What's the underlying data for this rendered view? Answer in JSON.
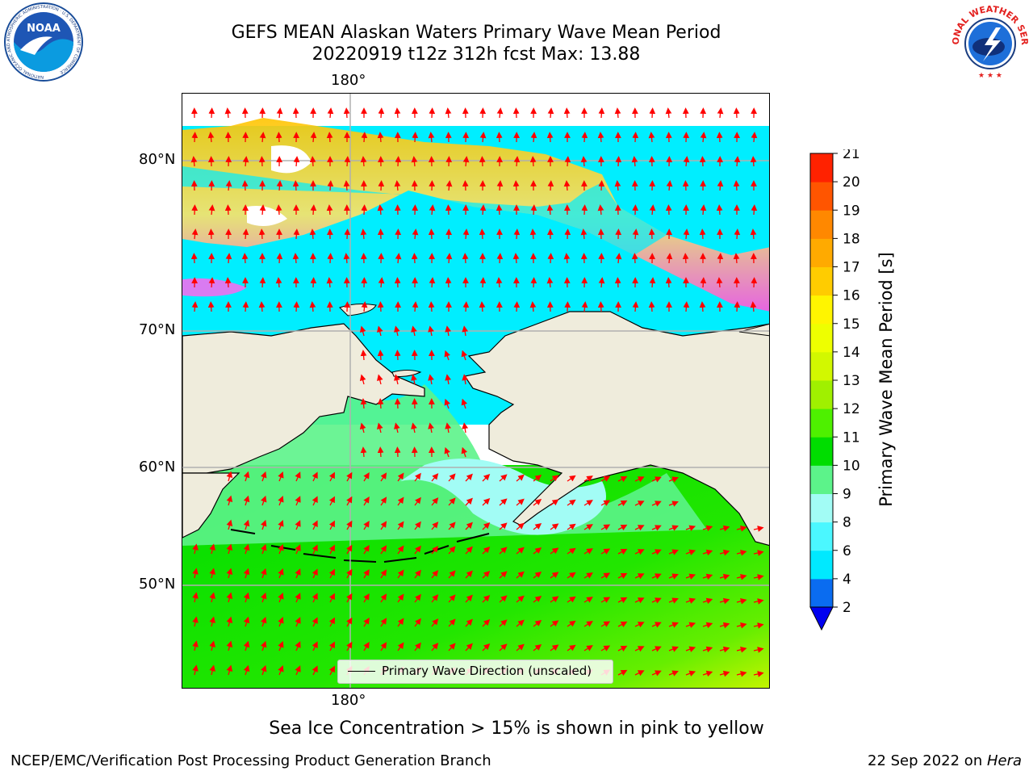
{
  "header": {
    "title_line1": "GEFS MEAN Alaskan Waters Primary Wave Mean Period",
    "title_line2": "20220919 t12z 312h fcst   Max: 13.88"
  },
  "logos": {
    "left": {
      "name": "NOAA",
      "ring_text": "NATIONAL OCEANIC AND ATMOSPHERIC ADMINISTRATION · U.S. DEPARTMENT OF COMMERCE"
    },
    "right": {
      "ring_text": "NATIONAL WEATHER SERVICE"
    }
  },
  "map": {
    "longitude_label_top": "180°",
    "longitude_label_bottom": "180°",
    "latitude_labels": [
      "80°N",
      "70°N",
      "60°N",
      "50°N"
    ],
    "legend_text": "Primary Wave Direction (unscaled)",
    "arrow_color": "#ff0000",
    "land_color": "#efecdc"
  },
  "colorbar": {
    "label": "Primary Wave Mean Period [s]",
    "ticks": [
      "2",
      "4",
      "6",
      "8",
      "9",
      "10",
      "11",
      "12",
      "13",
      "14",
      "15",
      "16",
      "17",
      "18",
      "19",
      "20",
      "21"
    ],
    "colors": [
      "#0a6cf0",
      "#00e9ff",
      "#4bf7ff",
      "#a2fcf5",
      "#5cf38a",
      "#00dd00",
      "#4ef000",
      "#a0f000",
      "#d2f800",
      "#eeff00",
      "#fff500",
      "#ffcc00",
      "#ffaa00",
      "#ff8800",
      "#ff5500",
      "#ff2200"
    ],
    "extend_color": "#0000f0"
  },
  "caption": "Sea Ice Concentration > 15% is shown in pink to yellow",
  "footer": {
    "left": "NCEP/EMC/Verification Post Processing Product Generation Branch",
    "date": "22 Sep 2022 on ",
    "host": "Hera"
  }
}
